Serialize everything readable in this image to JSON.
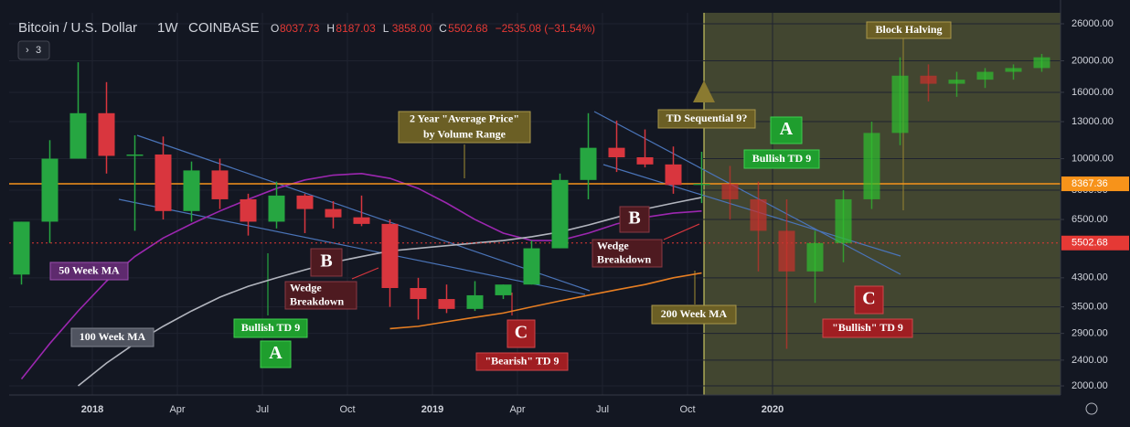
{
  "header": {
    "symbol": "Bitcoin / U.S. Dollar",
    "interval": "1W",
    "exchange": "COINBASE",
    "ohlc": [
      {
        "k": "O",
        "v": "8037.73"
      },
      {
        "k": "H",
        "v": "8187.03"
      },
      {
        "k": "L",
        "v": "3858.00"
      },
      {
        "k": "C",
        "v": "5502.68"
      }
    ],
    "change": "−2535.08 (−31.54%)",
    "indicator_count": "3"
  },
  "chart_data": {
    "type": "candlestick",
    "log_scale": true,
    "grid": true,
    "categories": [
      null,
      null,
      null,
      "2018",
      null,
      null,
      "Apr",
      null,
      null,
      "Jul",
      null,
      null,
      "Oct",
      null,
      null,
      "2019",
      null,
      null,
      "Apr",
      null,
      null,
      "Jul",
      null,
      null,
      "Oct",
      null,
      null,
      "2020",
      null,
      null,
      null,
      null,
      null,
      null,
      null,
      null,
      null
    ],
    "ylim": [
      1875,
      28100
    ],
    "yticks": [
      {
        "value": 2000,
        "label": "2000.00"
      },
      {
        "value": 2400,
        "label": "2400.00"
      },
      {
        "value": 2900,
        "label": "2900.00"
      },
      {
        "value": 3500,
        "label": "3500.00"
      },
      {
        "value": 4300,
        "label": "4300.00"
      },
      {
        "value": 6500,
        "label": "6500.00"
      },
      {
        "value": 8000,
        "label": "8000.00"
      },
      {
        "value": 10000,
        "label": "10000.00"
      },
      {
        "value": 13000,
        "label": "13000.00"
      },
      {
        "value": 16000,
        "label": "16000.00"
      },
      {
        "value": 20000,
        "label": "20000.00"
      },
      {
        "value": 26000,
        "label": "26000.00"
      }
    ],
    "series": [
      {
        "up_color": "#26a641",
        "down_color": "#d9363e",
        "opacity": 1,
        "open": [
          4400,
          6400,
          10000,
          13800,
          10200,
          10300,
          6900,
          9200,
          7500,
          6400,
          7700,
          7000,
          6600,
          6300,
          4000,
          3700,
          3450,
          3800,
          4100,
          5300,
          8600,
          10800,
          10100,
          9600,
          8300
        ],
        "high": [
          6400,
          11400,
          19800,
          17200,
          11800,
          11700,
          9800,
          10000,
          7800,
          8500,
          7800,
          7400,
          7700,
          6500,
          4300,
          4100,
          4200,
          4100,
          5600,
          9000,
          13800,
          13100,
          12300,
          10900,
          10500
        ],
        "low": [
          4100,
          5500,
          10000,
          9000,
          6000,
          6500,
          6400,
          7000,
          5800,
          6100,
          5900,
          6100,
          6200,
          3500,
          3200,
          3350,
          3400,
          3700,
          4100,
          5300,
          7500,
          9100,
          9400,
          7800,
          7300
        ],
        "close": [
          6400,
          10000,
          13800,
          10200,
          10300,
          6900,
          9200,
          7500,
          6400,
          7700,
          7000,
          6600,
          6300,
          4000,
          3700,
          3450,
          3800,
          4100,
          5300,
          8600,
          10800,
          10100,
          9600,
          8300,
          8367.36
        ]
      },
      {
        "up_color": "#2fbf2f",
        "down_color": "#c9302c",
        "opacity": 0.7,
        "open": [
          null,
          null,
          null,
          null,
          null,
          null,
          null,
          null,
          null,
          null,
          null,
          null,
          null,
          null,
          null,
          null,
          null,
          null,
          null,
          null,
          null,
          null,
          null,
          null,
          null,
          8367.36,
          7500,
          6000,
          4500,
          5500,
          7500,
          12000,
          18000,
          17000,
          17500,
          18500,
          19000
        ],
        "high": [
          null,
          null,
          null,
          null,
          null,
          null,
          null,
          null,
          null,
          null,
          null,
          null,
          null,
          null,
          null,
          null,
          null,
          null,
          null,
          null,
          null,
          null,
          null,
          null,
          null,
          9500,
          8500,
          7500,
          6000,
          8000,
          13000,
          20500,
          19500,
          18500,
          19000,
          19500,
          21000
        ],
        "low": [
          null,
          null,
          null,
          null,
          null,
          null,
          null,
          null,
          null,
          null,
          null,
          null,
          null,
          null,
          null,
          null,
          null,
          null,
          null,
          null,
          null,
          null,
          null,
          null,
          null,
          6500,
          4500,
          2600,
          3600,
          4800,
          7000,
          11000,
          15000,
          15500,
          16500,
          17500,
          18500
        ],
        "close": [
          null,
          null,
          null,
          null,
          null,
          null,
          null,
          null,
          null,
          null,
          null,
          null,
          null,
          null,
          null,
          null,
          null,
          null,
          null,
          null,
          null,
          null,
          null,
          null,
          null,
          7500,
          6000,
          4500,
          5500,
          7500,
          12000,
          18000,
          17000,
          17500,
          18500,
          19000,
          20500
        ]
      }
    ],
    "lines": [
      {
        "color": "#9c27b0",
        "values": [
          2100,
          2700,
          3400,
          4200,
          5000,
          5700,
          6300,
          6900,
          7500,
          8100,
          8600,
          8900,
          9000,
          8700,
          8100,
          7300,
          6500,
          5900,
          5600,
          5600,
          5900,
          6300,
          6600,
          6800,
          6900
        ]
      },
      {
        "color": "#b2b5be",
        "values": [
          null,
          null,
          2000,
          2350,
          2700,
          3050,
          3400,
          3750,
          4050,
          4300,
          4550,
          4800,
          5000,
          5200,
          5300,
          5400,
          5500,
          5600,
          5750,
          5950,
          6250,
          6600,
          7000,
          7300,
          7600
        ]
      },
      {
        "color": "#e67e22",
        "values": [
          null,
          null,
          null,
          null,
          null,
          null,
          null,
          null,
          null,
          null,
          null,
          null,
          null,
          3000,
          3050,
          3150,
          3250,
          3350,
          3500,
          3650,
          3800,
          3950,
          4100,
          4300,
          4450
        ]
      }
    ],
    "price_lines": [
      {
        "value": 8367.36,
        "color": "#f7931a",
        "dash": false
      },
      {
        "value": 5502.68,
        "color": "#e53935",
        "dash": true
      }
    ],
    "annotations": [
      {
        "lines": [
          "2 Year \"Average Price\"",
          "by Volume Range"
        ],
        "style": "olive"
      },
      {
        "lines": [
          "TD Sequential 9?"
        ],
        "style": "olive"
      },
      {
        "lines": [
          "Block Halving"
        ],
        "style": "olive"
      },
      {
        "lines": [
          "A"
        ],
        "style": "green-big"
      },
      {
        "lines": [
          "Bullish TD 9"
        ],
        "style": "green"
      },
      {
        "lines": [
          "B"
        ],
        "style": "maroon-big"
      },
      {
        "lines": [
          "Wedge",
          "Breakdown"
        ],
        "style": "maroon"
      },
      {
        "lines": [
          "B"
        ],
        "style": "maroon-big"
      },
      {
        "lines": [
          "Wedge",
          "Breakdown"
        ],
        "style": "maroon"
      },
      {
        "lines": [
          "50 Week MA"
        ],
        "style": "purple"
      },
      {
        "lines": [
          "100 Week MA"
        ],
        "style": "gray"
      },
      {
        "lines": [
          "200 Week MA"
        ],
        "style": "olive"
      },
      {
        "lines": [
          "Bullish TD 9"
        ],
        "style": "green"
      },
      {
        "lines": [
          "A"
        ],
        "style": "green-big"
      },
      {
        "lines": [
          "C"
        ],
        "style": "red-big"
      },
      {
        "lines": [
          "\"Bearish\" TD 9"
        ],
        "style": "red"
      },
      {
        "lines": [
          "C"
        ],
        "style": "red-big"
      },
      {
        "lines": [
          "\"Bullish\" TD 9"
        ],
        "style": "red"
      }
    ]
  }
}
